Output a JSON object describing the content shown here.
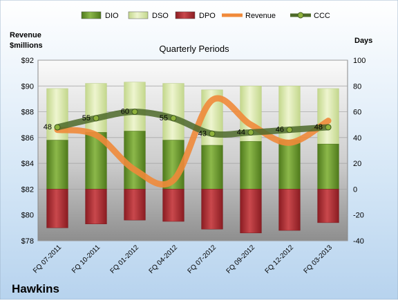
{
  "chart_data": {
    "type": "bar",
    "title": "Quarterly Periods",
    "company": "Hawkins",
    "left_axis_label": [
      "Revenue",
      "$millions"
    ],
    "right_axis_label": "Days",
    "categories": [
      "FQ 07-2011",
      "FQ 10-2011",
      "FQ 01-2012",
      "FQ 04-2012",
      "FQ 07-2012",
      "FQ 09-2012",
      "FQ 12-2012",
      "FQ 03-2013"
    ],
    "left_axis": {
      "min": 78,
      "max": 92,
      "step": 2,
      "prefix": "$"
    },
    "right_axis": {
      "min": -40,
      "max": 100,
      "step": 20
    },
    "bar_series": [
      {
        "name": "DIO",
        "color": "#6f9a2e",
        "values": [
          38,
          44,
          45,
          38,
          34,
          37,
          38,
          35
        ]
      },
      {
        "name": "DSO",
        "color": "#dce8ae",
        "values": [
          40,
          38,
          38,
          44,
          43,
          43,
          42,
          43
        ]
      },
      {
        "name": "DPO",
        "color": "#b03034",
        "values": [
          -30,
          -27,
          -24,
          -25,
          -31,
          -34,
          -32,
          -26
        ]
      }
    ],
    "revenue": {
      "name": "Revenue",
      "color": "#f08a3a",
      "values": [
        86.6,
        86.2,
        83.5,
        82.7,
        88.9,
        87.0,
        85.6,
        87.3
      ]
    },
    "ccc": {
      "name": "CCC",
      "color": "#4e6a2a",
      "values": [
        48,
        55,
        60,
        55,
        43,
        44,
        46,
        48
      ]
    },
    "legend": [
      "DIO",
      "DSO",
      "DPO",
      "Revenue",
      "CCC"
    ],
    "grid": true
  }
}
